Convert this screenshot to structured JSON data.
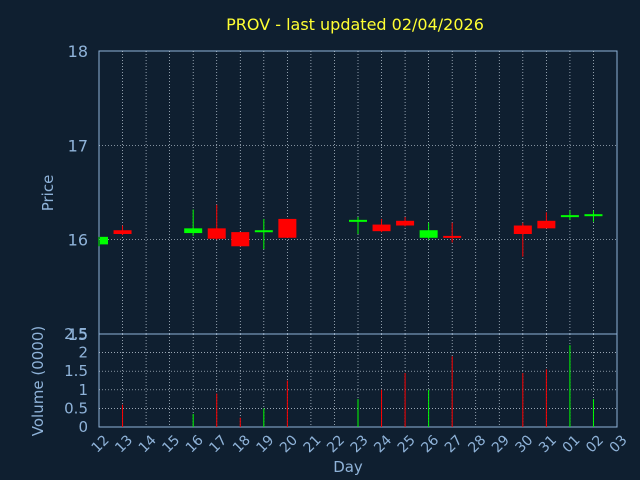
{
  "chart_data": [
    {
      "type": "candlestick",
      "title": "PROV - last updated 02/04/2026",
      "ylabel": "Price",
      "ylim": [
        15,
        18
      ],
      "yticks": [
        "15",
        "16",
        "17",
        "18"
      ],
      "grid": true,
      "up_color": "#00ff00",
      "down_color": "#ff0000",
      "x": [
        "12",
        "13",
        "14",
        "15",
        "16",
        "17",
        "18",
        "19",
        "20",
        "21",
        "22",
        "23",
        "24",
        "25",
        "26",
        "27",
        "28",
        "29",
        "30",
        "31",
        "01",
        "02",
        "03"
      ],
      "candles": [
        {
          "x": "12",
          "open": 15.95,
          "high": 16.03,
          "low": 15.93,
          "close": 16.03
        },
        {
          "x": "13",
          "open": 16.1,
          "high": 16.15,
          "low": 16.05,
          "close": 16.06
        },
        {
          "x": "16",
          "open": 16.07,
          "high": 16.32,
          "low": 16.04,
          "close": 16.12
        },
        {
          "x": "17",
          "open": 16.12,
          "high": 16.37,
          "low": 16.0,
          "close": 16.01
        },
        {
          "x": "18",
          "open": 16.08,
          "high": 16.08,
          "low": 15.93,
          "close": 15.93
        },
        {
          "x": "19",
          "open": 16.08,
          "high": 16.22,
          "low": 15.9,
          "close": 16.1
        },
        {
          "x": "20",
          "open": 16.22,
          "high": 16.22,
          "low": 16.02,
          "close": 16.02
        },
        {
          "x": "23",
          "open": 16.19,
          "high": 16.24,
          "low": 16.06,
          "close": 16.21
        },
        {
          "x": "24",
          "open": 16.16,
          "high": 16.22,
          "low": 16.08,
          "close": 16.09
        },
        {
          "x": "25",
          "open": 16.2,
          "high": 16.24,
          "low": 16.14,
          "close": 16.15
        },
        {
          "x": "26",
          "open": 16.02,
          "high": 16.18,
          "low": 16.0,
          "close": 16.1
        },
        {
          "x": "27",
          "open": 16.04,
          "high": 16.18,
          "low": 15.97,
          "close": 16.02
        },
        {
          "x": "30",
          "open": 16.15,
          "high": 16.18,
          "low": 15.82,
          "close": 16.06
        },
        {
          "x": "31",
          "open": 16.2,
          "high": 16.29,
          "low": 16.12,
          "close": 16.12
        },
        {
          "x": "01",
          "open": 16.25,
          "high": 16.31,
          "low": 16.21,
          "close": 16.26
        },
        {
          "x": "02",
          "open": 16.25,
          "high": 16.31,
          "low": 16.19,
          "close": 16.27
        }
      ]
    },
    {
      "type": "bar",
      "xlabel": "Day",
      "ylabel": "Volume (0000)",
      "ylim": [
        0,
        2.5
      ],
      "yticks": [
        "0",
        "0.5",
        "1",
        "1.5",
        "2",
        "2.5"
      ],
      "grid": true,
      "x": [
        "12",
        "13",
        "14",
        "15",
        "16",
        "17",
        "18",
        "19",
        "20",
        "21",
        "22",
        "23",
        "24",
        "25",
        "26",
        "27",
        "28",
        "29",
        "30",
        "31",
        "01",
        "02",
        "03"
      ],
      "bars": [
        {
          "x": "13",
          "value": 0.6,
          "color": "#ff0000"
        },
        {
          "x": "16",
          "value": 0.35,
          "color": "#00ff00"
        },
        {
          "x": "17",
          "value": 0.9,
          "color": "#ff0000"
        },
        {
          "x": "18",
          "value": 0.25,
          "color": "#ff0000"
        },
        {
          "x": "19",
          "value": 0.5,
          "color": "#00ff00"
        },
        {
          "x": "20",
          "value": 1.25,
          "color": "#ff0000"
        },
        {
          "x": "23",
          "value": 0.75,
          "color": "#00ff00"
        },
        {
          "x": "24",
          "value": 1.0,
          "color": "#ff0000"
        },
        {
          "x": "25",
          "value": 1.45,
          "color": "#ff0000"
        },
        {
          "x": "26",
          "value": 1.0,
          "color": "#00ff00"
        },
        {
          "x": "27",
          "value": 1.9,
          "color": "#ff0000"
        },
        {
          "x": "30",
          "value": 1.45,
          "color": "#ff0000"
        },
        {
          "x": "31",
          "value": 1.55,
          "color": "#ff0000"
        },
        {
          "x": "01",
          "value": 2.2,
          "color": "#00ff00"
        },
        {
          "x": "02",
          "value": 0.75,
          "color": "#00ff00"
        }
      ]
    }
  ]
}
